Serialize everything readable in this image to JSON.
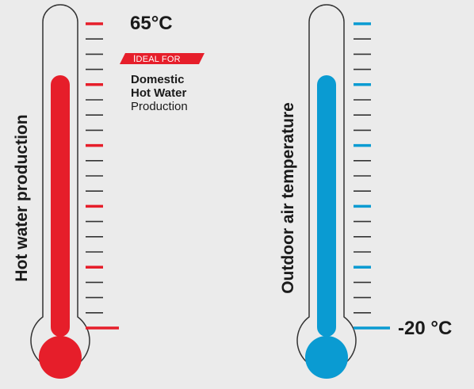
{
  "hot": {
    "vertical_label": "Hot water production",
    "temperature": "65°C",
    "badge": {
      "first_letter": "I",
      "rest": "DEAL FOR"
    },
    "description": {
      "line1": "Domestic",
      "line2": "Hot Water",
      "line3": "Production"
    },
    "color": "#e61e2a"
  },
  "cold": {
    "vertical_label": "Outdoor air temperature",
    "temperature": "-20 °C",
    "color": "#0a9bd2"
  },
  "colors": {
    "background": "#ebebeb",
    "outline": "#333333",
    "tick_dark": "#333333",
    "text": "#1a1a1a"
  },
  "icons": {
    "left": "hot-thermometer-icon",
    "right": "cold-thermometer-icon"
  }
}
